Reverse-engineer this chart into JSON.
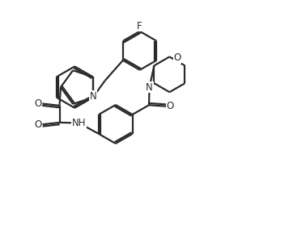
{
  "background": "#ffffff",
  "line_color": "#2a2a2a",
  "line_width": 1.6,
  "font_size": 8.5,
  "xlim": [
    0,
    10
  ],
  "ylim": [
    0,
    10
  ],
  "figsize": [
    3.57,
    2.95
  ],
  "dpi": 100
}
